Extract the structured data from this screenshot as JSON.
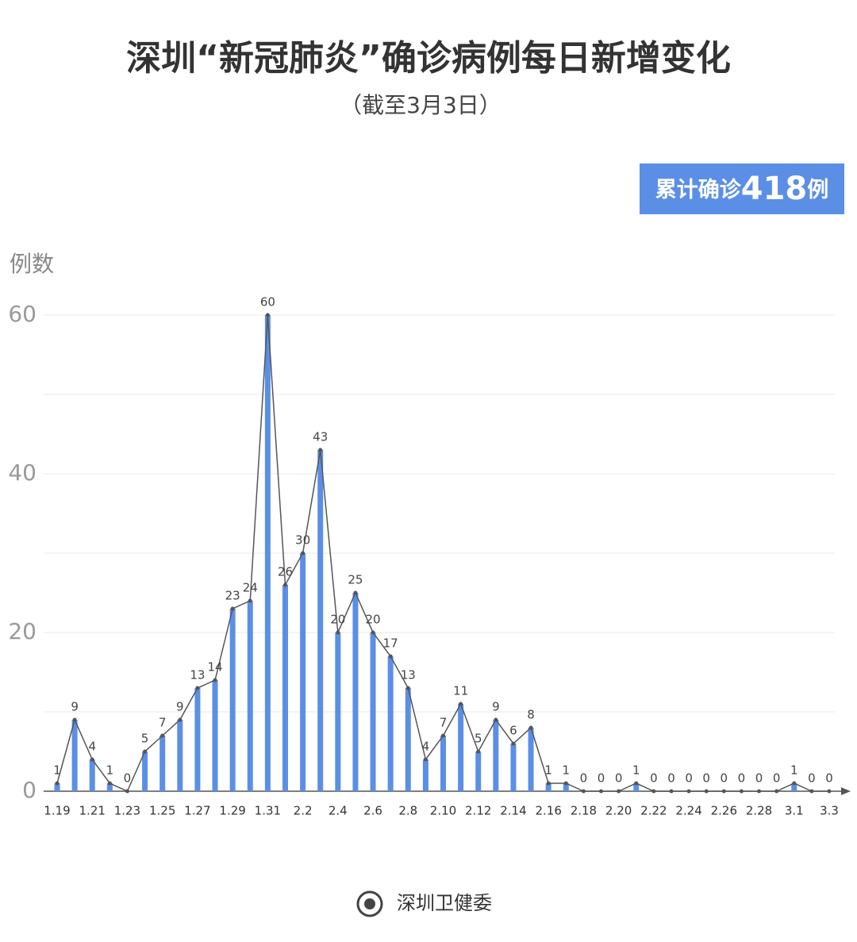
{
  "chart_data": {
    "type": "bar",
    "title": "深圳“新冠肺炎”确诊病例每日新增变化",
    "subtitle": "（截至3月3日）",
    "badge": {
      "prefix": "累计确诊",
      "value": 418,
      "suffix": "例"
    },
    "y_label": "例数",
    "source": "深圳卫健委",
    "categories": [
      "1.19",
      null,
      "1.21",
      null,
      "1.23",
      null,
      "1.25",
      null,
      "1.27",
      null,
      "1.29",
      null,
      "1.31",
      null,
      "2.2",
      null,
      "2.4",
      null,
      "2.6",
      null,
      "2.8",
      null,
      "2.10",
      null,
      "2.12",
      null,
      "2.14",
      null,
      "2.16",
      null,
      "2.18",
      null,
      "2.20",
      null,
      "2.22",
      null,
      "2.24",
      null,
      "2.26",
      null,
      "2.28",
      null,
      "3.1",
      null,
      "3.3"
    ],
    "values": [
      1,
      9,
      4,
      1,
      0,
      5,
      7,
      9,
      13,
      14,
      23,
      24,
      60,
      26,
      30,
      43,
      20,
      25,
      20,
      17,
      13,
      4,
      7,
      11,
      5,
      9,
      6,
      8,
      1,
      1,
      0,
      0,
      0,
      1,
      0,
      0,
      0,
      0,
      0,
      0,
      0,
      0,
      1,
      0,
      0
    ],
    "color": "#5b8fe6",
    "line_color": "#555555",
    "ylim": [
      0,
      60
    ],
    "yticks": [
      0,
      20,
      40,
      60
    ],
    "minor_yticks": [
      10,
      30,
      50
    ],
    "grid": true
  }
}
